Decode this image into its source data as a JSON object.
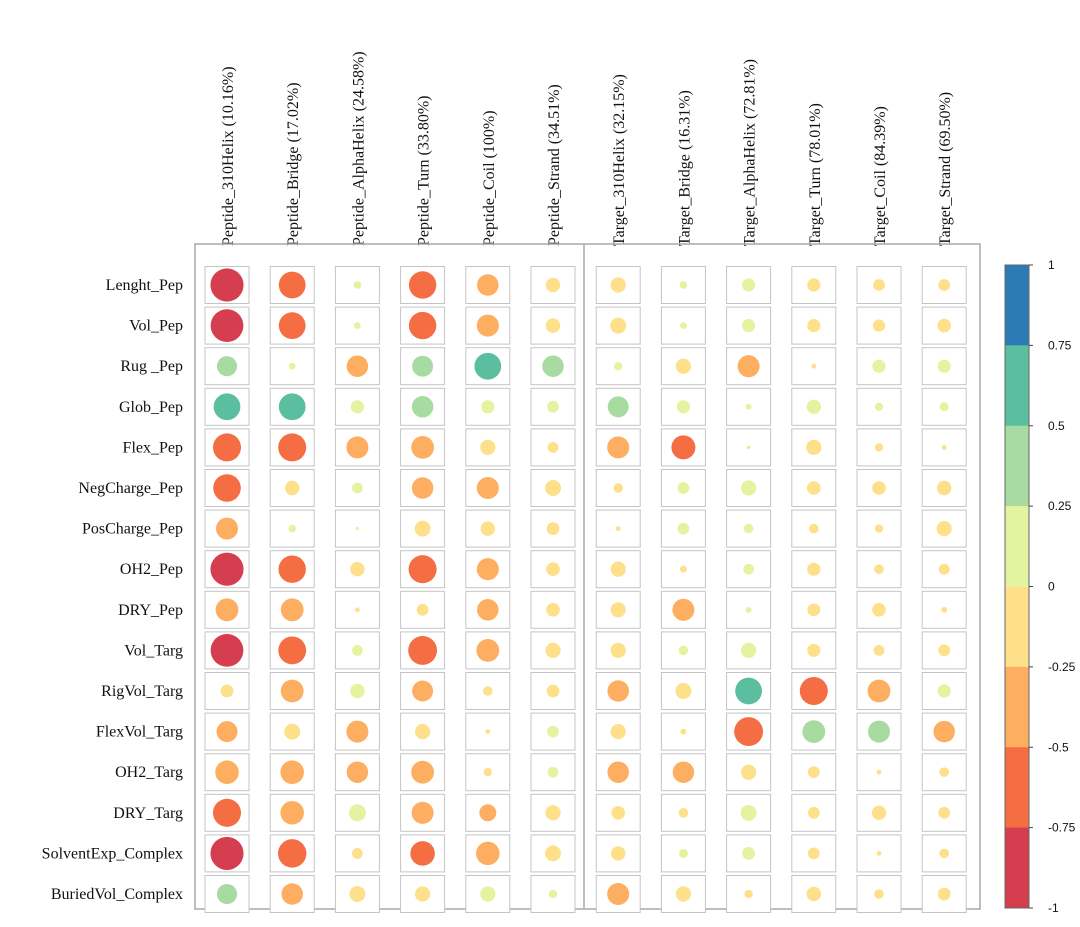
{
  "chart_data": {
    "type": "heatmap",
    "style": "correlation-bubble",
    "columns": [
      "Peptide_310Helix (10.16%)",
      "Peptide_Bridge (17.02%)",
      "Peptide_AlphaHelix (24.58%)",
      "Peptide_Turn  (33.80%)",
      "Peptide_Coil (100%)",
      "Peptide_Strand (34.51%)",
      "Target_310Helix (32.15%)",
      "Target_Bridge (16.31%)",
      "Target_AlphaHelix (72.81%)",
      "Target_Turn (78.01%)",
      "Target_Coil (84.39%)",
      "Target_Strand (69.50%)"
    ],
    "rows": [
      "Lenght_Pep",
      "Vol_Pep",
      "Rug _Pep",
      "Glob_Pep",
      "Flex_Pep",
      "NegCharge_Pep",
      "PosCharge_Pep",
      "OH2_Pep",
      "DRY_Pep",
      "Vol_Targ",
      "RigVol_Targ",
      "FlexVol_Targ",
      "OH2_Targ",
      "DRY_Targ",
      "SolventExp_Complex",
      "BuriedVol_Complex"
    ],
    "values": [
      [
        -0.95,
        -0.62,
        0.05,
        -0.65,
        -0.4,
        -0.18,
        -0.2,
        0.05,
        0.15,
        -0.15,
        -0.12,
        -0.12
      ],
      [
        -0.93,
        -0.62,
        0.04,
        -0.65,
        -0.42,
        -0.18,
        -0.22,
        0.04,
        0.15,
        -0.15,
        -0.13,
        -0.16
      ],
      [
        0.35,
        0.04,
        -0.4,
        0.38,
        0.62,
        0.4,
        0.06,
        -0.2,
        -0.42,
        -0.02,
        0.15,
        0.15
      ],
      [
        0.62,
        0.62,
        0.15,
        0.4,
        0.15,
        0.12,
        0.38,
        0.15,
        0.03,
        0.18,
        0.06,
        0.07
      ],
      [
        -0.68,
        -0.68,
        -0.42,
        -0.45,
        -0.2,
        -0.1,
        -0.42,
        -0.5,
        -0.01,
        -0.2,
        -0.06,
        -0.02
      ],
      [
        -0.66,
        -0.18,
        0.1,
        -0.4,
        -0.42,
        -0.22,
        -0.08,
        0.12,
        0.2,
        -0.16,
        -0.16,
        -0.18
      ],
      [
        -0.42,
        0.05,
        0.01,
        -0.22,
        -0.18,
        -0.14,
        -0.02,
        0.12,
        0.08,
        -0.08,
        -0.06,
        -0.2
      ],
      [
        -0.95,
        -0.65,
        -0.18,
        -0.68,
        -0.42,
        -0.16,
        -0.2,
        -0.04,
        0.1,
        -0.15,
        -0.08,
        -0.1
      ],
      [
        -0.45,
        -0.45,
        -0.02,
        -0.12,
        -0.4,
        -0.16,
        -0.2,
        -0.42,
        0.03,
        -0.14,
        -0.16,
        -0.03
      ],
      [
        -0.93,
        -0.67,
        0.1,
        -0.72,
        -0.45,
        -0.2,
        -0.2,
        0.08,
        0.2,
        -0.15,
        -0.1,
        -0.12
      ],
      [
        -0.14,
        -0.45,
        0.18,
        -0.38,
        -0.08,
        -0.14,
        -0.4,
        -0.22,
        0.62,
        -0.68,
        -0.45,
        0.15
      ],
      [
        -0.38,
        -0.22,
        -0.42,
        -0.2,
        -0.02,
        0.12,
        -0.2,
        -0.03,
        -0.72,
        0.45,
        0.42,
        -0.4
      ],
      [
        -0.48,
        -0.48,
        -0.4,
        -0.45,
        -0.06,
        0.1,
        -0.4,
        -0.4,
        -0.2,
        -0.12,
        -0.02,
        -0.08
      ],
      [
        -0.68,
        -0.48,
        0.25,
        -0.42,
        -0.25,
        -0.2,
        -0.16,
        -0.08,
        0.22,
        -0.12,
        -0.18,
        -0.12
      ],
      [
        -0.95,
        -0.7,
        -0.1,
        -0.52,
        -0.48,
        -0.22,
        -0.18,
        0.07,
        0.14,
        -0.12,
        -0.02,
        -0.08
      ],
      [
        0.35,
        -0.4,
        -0.22,
        -0.2,
        0.2,
        0.06,
        -0.42,
        -0.2,
        -0.06,
        -0.18,
        -0.08,
        -0.14
      ]
    ],
    "colorbar": {
      "min": -1,
      "max": 1,
      "ticks": [
        "1",
        "0.75",
        "0.5",
        "0.25",
        "0",
        "-0.25",
        "-0.5",
        "-0.75",
        "-1"
      ],
      "colors": [
        "#2c7bb6",
        "#5bbf9f",
        "#a8dba2",
        "#e4f3a0",
        "#fee08b",
        "#fdae61",
        "#f46d43",
        "#d53e4f"
      ]
    },
    "legend": "right",
    "grid": true
  }
}
